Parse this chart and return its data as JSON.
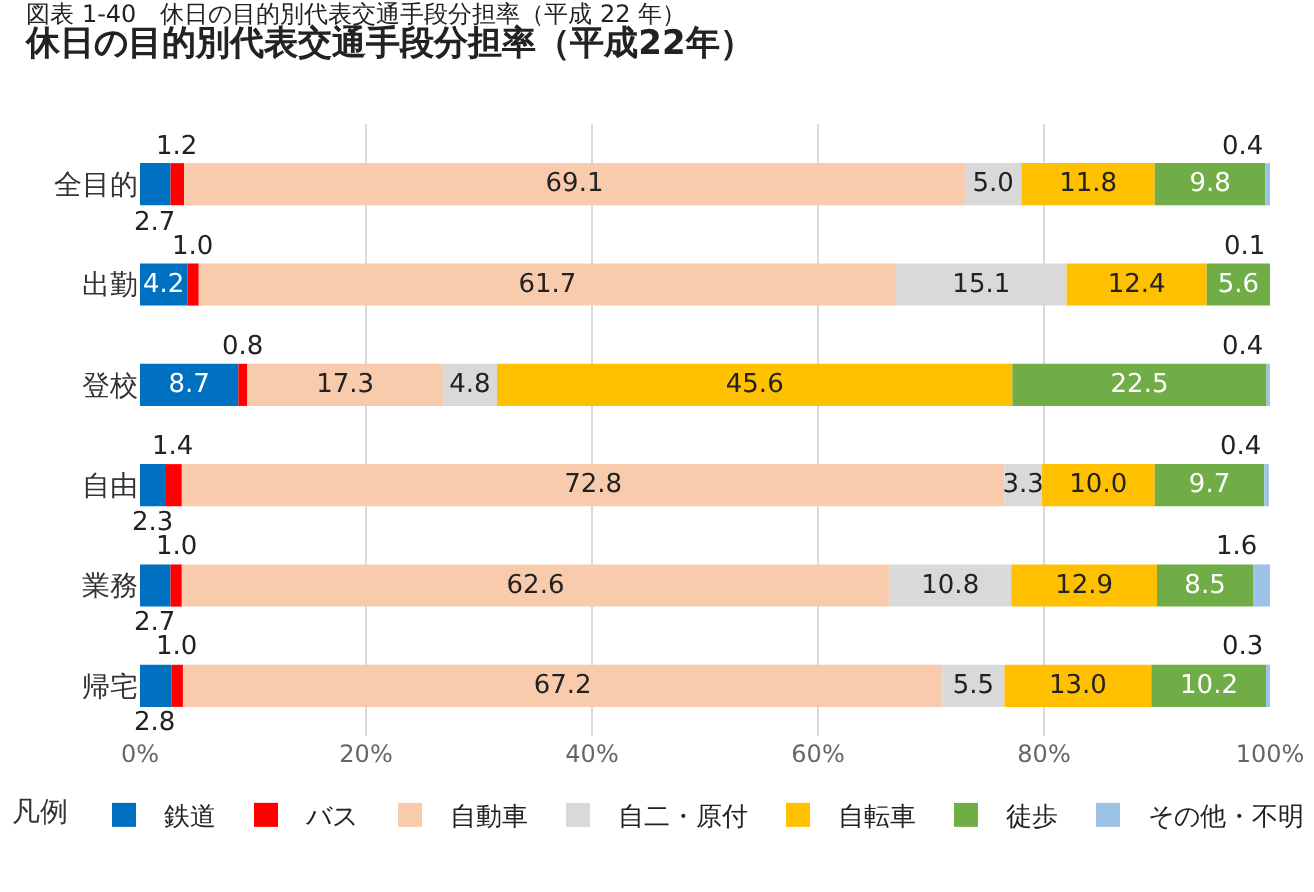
{
  "chart_data": {
    "type": "bar",
    "orientation": "horizontal",
    "stacked": true,
    "title": "図表 1-40　休日の目的別代表交通手段分担率（平成 22 年）",
    "subtitle": "休日の目的別代表交通手段分担率（平成22年）",
    "legend_title": "凡例",
    "categories": [
      "全目的",
      "出勤",
      "登校",
      "自由",
      "業務",
      "帰宅"
    ],
    "series": [
      {
        "name": "鉄道",
        "color": "#0070c0",
        "values": [
          2.7,
          4.2,
          8.7,
          2.3,
          2.7,
          2.8
        ],
        "value_labels": [
          "2.7",
          "4.2",
          "8.7",
          "2.3",
          "2.7",
          "2.8"
        ]
      },
      {
        "name": "バス",
        "color": "#ff0000",
        "values": [
          1.2,
          1.0,
          0.8,
          1.4,
          1.0,
          1.0
        ],
        "value_labels": [
          "1.2",
          "1.0",
          "0.8",
          "1.4",
          "1.0",
          "1.0"
        ]
      },
      {
        "name": "自動車",
        "color": "#f8cbad",
        "values": [
          69.1,
          61.7,
          17.3,
          72.8,
          62.6,
          67.2
        ],
        "value_labels": [
          "69.1",
          "61.7",
          "17.3",
          "72.8",
          "62.6",
          "67.2"
        ]
      },
      {
        "name": "自二・原付",
        "color": "#d9d9d9",
        "values": [
          5.0,
          15.1,
          4.8,
          3.3,
          10.8,
          5.5
        ],
        "value_labels": [
          "5.0",
          "15.1",
          "4.8",
          "3.3",
          "10.8",
          "5.5"
        ]
      },
      {
        "name": "自転車",
        "color": "#ffc000",
        "values": [
          11.8,
          12.4,
          45.6,
          10.0,
          12.9,
          13.0
        ],
        "value_labels": [
          "11.8",
          "12.4",
          "45.6",
          "10.0",
          "12.9",
          "13.0"
        ]
      },
      {
        "name": "徒歩",
        "color": "#70ad47",
        "values": [
          9.8,
          5.6,
          22.5,
          9.7,
          8.5,
          10.2
        ],
        "value_labels": [
          "9.8",
          "5.6",
          "22.5",
          "9.7",
          "8.5",
          "10.2"
        ]
      },
      {
        "name": "その他・不明",
        "color": "#9dc3e6",
        "values": [
          0.4,
          0.1,
          0.4,
          0.4,
          1.6,
          0.3
        ],
        "value_labels": [
          "0.4",
          "0.1",
          "0.4",
          "0.4",
          "1.6",
          "0.3"
        ]
      }
    ],
    "xlim": [
      0,
      100
    ],
    "xticks": [
      {
        "value": 0,
        "label": "0%"
      },
      {
        "value": 20,
        "label": "20%"
      },
      {
        "value": 40,
        "label": "40%"
      },
      {
        "value": 60,
        "label": "60%"
      },
      {
        "value": 80,
        "label": "80%"
      },
      {
        "value": 100,
        "label": "100%"
      }
    ],
    "grid": "x",
    "legend": "bottom",
    "data_labels": true
  }
}
